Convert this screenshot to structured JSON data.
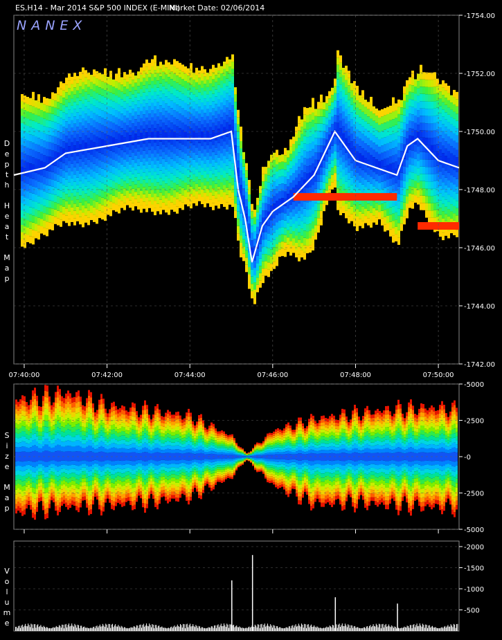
{
  "header": {
    "symbol_text": "ES.H14 - Mar 2014 S&P 500 INDEX (E-MINI)",
    "market_date": "Market Date: 02/06/2014"
  },
  "logo": "NANEX",
  "panels": {
    "heat": {
      "side_label": [
        "D",
        "e",
        "p",
        "t",
        "h",
        "",
        "H",
        "e",
        "a",
        "t",
        "",
        "M",
        "a",
        "p"
      ]
    },
    "size": {
      "side_label": [
        "S",
        "i",
        "z",
        "e",
        "",
        "M",
        "a",
        "p"
      ]
    },
    "volume": {
      "side_label": [
        "V",
        "o",
        "l",
        "u",
        "m",
        "e"
      ]
    }
  },
  "colors": {
    "background": "#000000",
    "grid": "#5a5a5a",
    "price_trace": "#ffffff"
  },
  "chart_data": [
    {
      "type": "heatmap",
      "title": "Depth Heat Map",
      "x_ticks": [
        "07:40:00",
        "07:42:00",
        "07:44:00",
        "07:46:00",
        "07:48:00",
        "07:50:00"
      ],
      "y_ticks": [
        "1742.00",
        "1744.00",
        "1746.00",
        "1748.00",
        "1750.00",
        "1752.00",
        "1754.00"
      ],
      "ylim": [
        1742.0,
        1754.0
      ],
      "xlim": [
        "07:39:45",
        "07:50:30"
      ],
      "grid": true,
      "price_trace": {
        "time": [
          "07:39:45",
          "07:40:30",
          "07:41:00",
          "07:42:00",
          "07:43:00",
          "07:44:00",
          "07:44:30",
          "07:45:00",
          "07:45:10",
          "07:45:20",
          "07:45:30",
          "07:45:45",
          "07:46:00",
          "07:46:30",
          "07:47:00",
          "07:47:15",
          "07:47:30",
          "07:47:45",
          "07:48:00",
          "07:48:30",
          "07:49:00",
          "07:49:15",
          "07:49:30",
          "07:50:00",
          "07:50:30"
        ],
        "price": [
          1748.5,
          1748.75,
          1749.25,
          1749.5,
          1749.75,
          1749.75,
          1749.75,
          1750.0,
          1748.0,
          1747.0,
          1745.5,
          1746.75,
          1747.25,
          1747.75,
          1748.5,
          1749.25,
          1750.0,
          1749.5,
          1749.0,
          1748.75,
          1748.5,
          1749.5,
          1749.75,
          1749.0,
          1748.75
        ]
      },
      "hot_spots": [
        {
          "time_from": "07:46:30",
          "time_to": "07:49:00",
          "price": 1747.75,
          "level": "high"
        },
        {
          "time_from": "07:49:30",
          "time_to": "07:50:30",
          "price": 1746.75,
          "level": "high"
        }
      ]
    },
    {
      "type": "heatmap",
      "title": "Size Map",
      "x_ticks": [
        "07:40:00",
        "07:42:00",
        "07:44:00",
        "07:46:00",
        "07:48:00",
        "07:50:00"
      ],
      "y_ticks": [
        "5000",
        "2500",
        "0",
        "-2500",
        "-5000"
      ],
      "ylim": [
        -5000,
        5000
      ],
      "envelope": {
        "time": [
          "07:39:45",
          "07:41:00",
          "07:42:00",
          "07:43:00",
          "07:44:00",
          "07:45:00",
          "07:45:20",
          "07:46:00",
          "07:47:00",
          "07:48:00",
          "07:49:00",
          "07:50:00",
          "07:50:30"
        ],
        "upper": [
          3900,
          4400,
          3500,
          3200,
          2800,
          1400,
          200,
          1800,
          2600,
          3000,
          3300,
          3400,
          3200
        ],
        "lower": [
          -3900,
          -3500,
          -3400,
          -3200,
          -2800,
          -1400,
          -200,
          -2000,
          -3300,
          -3200,
          -3400,
          -3500,
          -3500
        ]
      }
    },
    {
      "type": "bar",
      "title": "Volume",
      "y_ticks": [
        "2000",
        "1500",
        "1000",
        "500"
      ],
      "ylim": [
        0,
        2000
      ],
      "spikes": [
        {
          "time": "07:45:00",
          "value": 1200
        },
        {
          "time": "07:45:30",
          "value": 1800
        },
        {
          "time": "07:47:30",
          "value": 800
        },
        {
          "time": "07:49:00",
          "value": 650
        }
      ],
      "baseline_volume": 180
    }
  ]
}
